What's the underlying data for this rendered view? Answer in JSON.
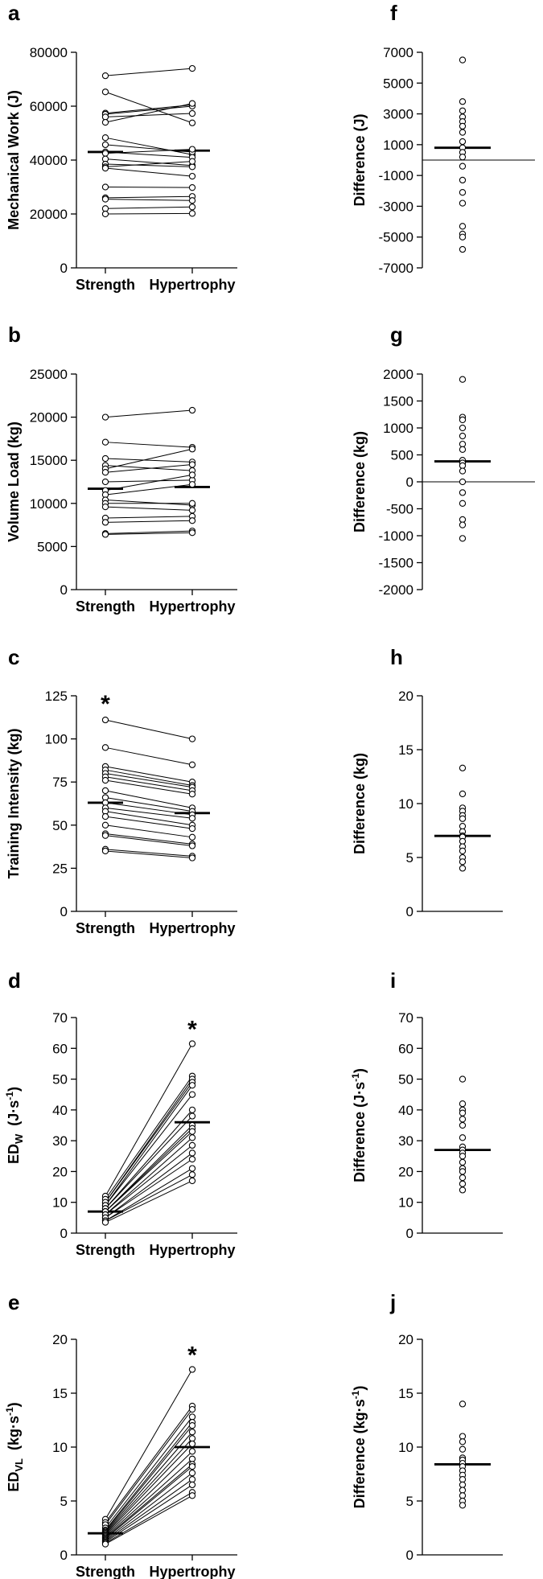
{
  "chart_data": [
    {
      "panel": "a",
      "type": "paired-dot",
      "ylabel": "Mechanical Work (J)",
      "categories": [
        "Strength",
        "Hypertrophy"
      ],
      "ylim": [
        0,
        80000
      ],
      "yticks": [
        0,
        20000,
        40000,
        60000,
        80000
      ],
      "yticklabels": [
        "0",
        "20000",
        "40000",
        "60000",
        "80000"
      ],
      "strength": [
        71300,
        65300,
        57400,
        57000,
        56000,
        54000,
        48300,
        45700,
        43000,
        42500,
        40400,
        38500,
        37500,
        37000,
        30000,
        26000,
        25500,
        22000,
        20000
      ],
      "hypertrophy": [
        74000,
        53800,
        60500,
        60000,
        57300,
        61000,
        42000,
        43000,
        41000,
        44000,
        38000,
        37500,
        39500,
        34000,
        29800,
        26500,
        25000,
        22600,
        20200
      ],
      "means": [
        43000,
        43500
      ],
      "significance": ""
    },
    {
      "panel": "b",
      "type": "paired-dot",
      "ylabel": "Volume Load (kg)",
      "categories": [
        "Strength",
        "Hypertrophy"
      ],
      "ylim": [
        0,
        25000
      ],
      "yticks": [
        0,
        5000,
        10000,
        15000,
        20000,
        25000
      ],
      "yticklabels": [
        "0",
        "5000",
        "10000",
        "15000",
        "20000",
        "25000"
      ],
      "strength": [
        20000,
        17100,
        15200,
        14400,
        14000,
        13600,
        12500,
        11500,
        11000,
        10400,
        10000,
        9600,
        8300,
        7800,
        6500,
        6400
      ],
      "hypertrophy": [
        20800,
        16500,
        14800,
        13800,
        16300,
        14500,
        12700,
        13300,
        12200,
        9800,
        10000,
        9200,
        8500,
        8000,
        6800,
        6600
      ],
      "means": [
        11700,
        11900
      ],
      "significance": ""
    },
    {
      "panel": "c",
      "type": "paired-dot",
      "ylabel": "Training Intensity (kg)",
      "categories": [
        "Strength",
        "Hypertrophy"
      ],
      "ylim": [
        0,
        125
      ],
      "yticks": [
        0,
        25,
        50,
        75,
        100,
        125
      ],
      "yticklabels": [
        "0",
        "25",
        "50",
        "75",
        "100",
        "125"
      ],
      "strength": [
        111,
        95,
        84,
        82,
        80,
        78,
        76,
        70,
        66,
        63,
        60,
        58,
        55,
        50,
        45,
        44,
        36,
        35
      ],
      "hypertrophy": [
        100,
        85,
        75,
        73,
        72,
        70,
        68,
        60,
        58,
        56,
        54,
        50,
        48,
        43,
        39,
        38,
        32,
        31
      ],
      "means": [
        63,
        57
      ],
      "significance": "*"
    },
    {
      "panel": "d",
      "type": "paired-dot",
      "ylabel": "ED_W (J·s⁻¹)",
      "ylabel_main": "ED",
      "ylabel_sub": "W",
      "ylabel_unit": "(J·s",
      "ylabel_sup": "-1",
      "ylabel_close": ")",
      "categories": [
        "Strength",
        "Hypertrophy"
      ],
      "ylim": [
        0,
        70
      ],
      "yticks": [
        0,
        10,
        20,
        30,
        40,
        50,
        60,
        70
      ],
      "yticklabels": [
        "0",
        "10",
        "20",
        "30",
        "40",
        "50",
        "60",
        "70"
      ],
      "strength": [
        12,
        11,
        10,
        10,
        9,
        9,
        8,
        8,
        7,
        7,
        7,
        6,
        6,
        5,
        5,
        4,
        4,
        3.5
      ],
      "hypertrophy": [
        61.5,
        51,
        50,
        49,
        48,
        45,
        40,
        38,
        35,
        34,
        33,
        31,
        28.5,
        26,
        24,
        21,
        19,
        17
      ],
      "means": [
        7,
        36
      ],
      "significance": "*"
    },
    {
      "panel": "e",
      "type": "paired-dot",
      "ylabel": "ED_VL (kg·s⁻¹)",
      "ylabel_main": "ED",
      "ylabel_sub": "VL",
      "ylabel_unit": "(kg·s",
      "ylabel_sup": "-1",
      "ylabel_close": ")",
      "categories": [
        "Strength",
        "Hypertrophy"
      ],
      "ylim": [
        0,
        20
      ],
      "yticks": [
        0,
        5,
        10,
        15,
        20
      ],
      "yticklabels": [
        "0",
        "5",
        "10",
        "15",
        "20"
      ],
      "strength": [
        3.3,
        3.0,
        2.8,
        2.5,
        2.3,
        2.2,
        2.1,
        2.0,
        1.9,
        1.8,
        1.7,
        1.6,
        1.5,
        1.4,
        1.3,
        1.2,
        1.1,
        1.0
      ],
      "hypertrophy": [
        17.2,
        13.8,
        13.5,
        12.8,
        12.3,
        12.0,
        11.4,
        10.8,
        10.3,
        9.6,
        8.9,
        8.4,
        8.2,
        7.6,
        7.0,
        6.5,
        5.8,
        5.5
      ],
      "means": [
        2.0,
        10.0
      ],
      "significance": "*"
    },
    {
      "panel": "f",
      "type": "dot-difference",
      "ylabel": "Difference (J)",
      "ylim": [
        -7000,
        7000
      ],
      "yticks": [
        -7000,
        -5000,
        -3000,
        -1000,
        1000,
        3000,
        5000,
        7000
      ],
      "yticklabels": [
        "-7000",
        "-5000",
        "-3000",
        "-1000",
        "1000",
        "3000",
        "5000",
        "7000"
      ],
      "values": [
        6500,
        3800,
        3200,
        2800,
        2500,
        2200,
        1800,
        1200,
        800,
        500,
        200,
        -400,
        -1300,
        -2100,
        -2800,
        -4300,
        -4800,
        -5000,
        -5800
      ],
      "mean": 800,
      "zero_line": true
    },
    {
      "panel": "g",
      "type": "dot-difference",
      "ylabel": "Difference (kg)",
      "ylim": [
        -2000,
        2000
      ],
      "yticks": [
        -2000,
        -1500,
        -1000,
        -500,
        0,
        500,
        1000,
        1500,
        2000
      ],
      "yticklabels": [
        "-2000",
        "-1500",
        "-1000",
        "-500",
        "0",
        "500",
        "1000",
        "1500",
        "2000"
      ],
      "values": [
        1900,
        1200,
        1150,
        1000,
        850,
        700,
        600,
        400,
        350,
        300,
        200,
        0,
        -200,
        -400,
        -700,
        -800,
        -1050
      ],
      "mean": 380,
      "zero_line": true
    },
    {
      "panel": "h",
      "type": "dot-difference",
      "ylabel": "Difference (kg)",
      "ylim": [
        0,
        20
      ],
      "yticks": [
        0,
        5,
        10,
        15,
        20
      ],
      "yticklabels": [
        "0",
        "5",
        "10",
        "15",
        "20"
      ],
      "values": [
        13.3,
        10.9,
        9.6,
        9.3,
        8.9,
        8.6,
        7.9,
        7.4,
        7.0,
        6.9,
        6.5,
        6.0,
        5.6,
        5.0,
        4.6,
        4.0
      ],
      "mean": 7.0,
      "zero_line": false
    },
    {
      "panel": "i",
      "type": "dot-difference",
      "ylabel": "Difference (J·s⁻¹)",
      "ylabel_main": "Difference (J·s",
      "ylabel_sup": "-1",
      "ylabel_close": ")",
      "ylim": [
        0,
        70
      ],
      "yticks": [
        0,
        10,
        20,
        30,
        40,
        50,
        60,
        70
      ],
      "yticklabels": [
        "0",
        "10",
        "20",
        "30",
        "40",
        "50",
        "60",
        "70"
      ],
      "values": [
        50,
        42,
        40,
        39,
        37,
        35,
        31,
        28,
        27,
        26,
        25,
        23,
        21,
        20,
        18,
        16,
        14
      ],
      "mean": 27,
      "zero_line": false
    },
    {
      "panel": "j",
      "type": "dot-difference",
      "ylabel": "Difference (kg·s⁻¹)",
      "ylabel_main": "Difference (kg·s",
      "ylabel_sup": "-1",
      "ylabel_close": ")",
      "ylim": [
        0,
        20
      ],
      "yticks": [
        0,
        5,
        10,
        15,
        20
      ],
      "yticklabels": [
        "0",
        "5",
        "10",
        "15",
        "20"
      ],
      "values": [
        14.0,
        11.0,
        10.5,
        9.8,
        9.0,
        8.8,
        8.5,
        8.2,
        7.8,
        7.4,
        7.0,
        6.5,
        6.0,
        5.5,
        5.0,
        4.6
      ],
      "mean": 8.4,
      "zero_line": false
    }
  ]
}
